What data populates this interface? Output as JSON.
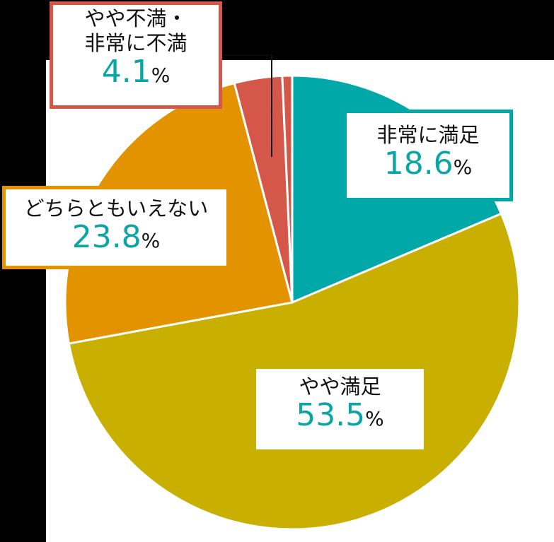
{
  "chart_data": {
    "type": "pie",
    "title": "",
    "start_angle_deg": 0,
    "direction": "clockwise",
    "slices": [
      {
        "key": "very_satisfied",
        "label": "非常に満足",
        "value": 18.6,
        "color": "#00a8a8"
      },
      {
        "key": "somewhat_satisfied",
        "label": "やや満足",
        "value": 53.5,
        "color": "#c9b000"
      },
      {
        "key": "neutral",
        "label": "どちらともいえない",
        "value": 23.8,
        "color": "#e39300"
      },
      {
        "key": "somewhat_dissatisfied",
        "label": "やや不満",
        "value": 3.4,
        "color": "#d5574a"
      },
      {
        "key": "very_dissatisfied",
        "label": "非常に不満",
        "value": 0.7,
        "color": "#d5574a"
      }
    ],
    "callouts": [
      {
        "key": "very_satisfied",
        "label": "非常に満足",
        "value": "18.6",
        "unit": "%",
        "border": "#00a8a8"
      },
      {
        "key": "somewhat_satisfied",
        "label": "やや満足",
        "value": "53.5",
        "unit": "%",
        "border": "#c9b000"
      },
      {
        "key": "neutral",
        "label": "どちらともいえない",
        "value": "23.8",
        "unit": "%",
        "border": "#e39300"
      },
      {
        "key": "dissatisfied_combined",
        "label_line1": "やや不満・",
        "label_line2": "非常に不満",
        "value": "4.1",
        "unit": "%",
        "border": "#d5574a"
      }
    ],
    "legend": "none (callout labels)"
  },
  "labels": {
    "very_satisfied": {
      "name": "非常に満足",
      "value": "18.6",
      "unit": "%"
    },
    "somewhat_satisfied": {
      "name": "やや満足",
      "value": "53.5",
      "unit": "%"
    },
    "neutral": {
      "name": "どちらともいえない",
      "value": "23.8",
      "unit": "%"
    },
    "dissatisfied": {
      "name_line1": "やや不満・",
      "name_line2": "非常に不満",
      "value": "4.1",
      "unit": "%"
    }
  },
  "colors": {
    "teal": "#00a8a8",
    "gold": "#c9b000",
    "orange": "#e39300",
    "red": "#d5574a",
    "value_text": "#0aa5a5"
  }
}
